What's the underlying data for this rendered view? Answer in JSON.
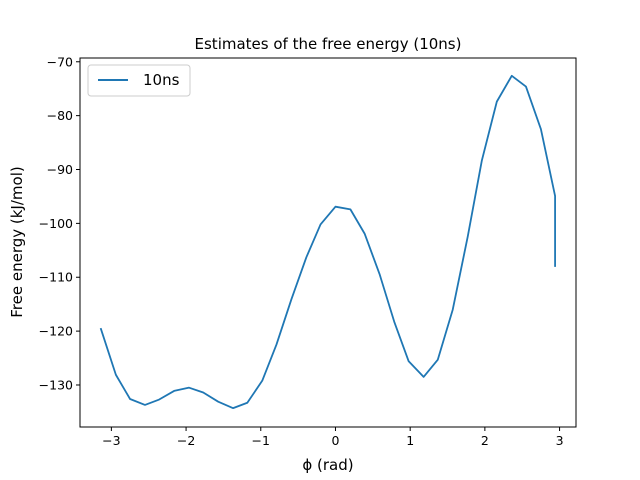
{
  "chart_data": {
    "type": "line",
    "title": "Estimates of the free energy (10ns)",
    "xlabel": "ϕ (rad)",
    "ylabel": "Free energy (kJ/mol)",
    "xlim": [
      -3.42,
      3.22
    ],
    "ylim": [
      -137.8,
      -69.3
    ],
    "xticks": [
      -3,
      -2,
      -1,
      0,
      1,
      2,
      3
    ],
    "xtick_labels": [
      "−3",
      "−2",
      "−1",
      "0",
      "1",
      "2",
      "3"
    ],
    "yticks": [
      -130,
      -120,
      -110,
      -100,
      -90,
      -80,
      -70
    ],
    "ytick_labels": [
      "−130",
      "−120",
      "−110",
      "−100",
      "−90",
      "−80",
      "−70"
    ],
    "grid": false,
    "legend_position": "top-left",
    "series": [
      {
        "name": "10ns",
        "color": "#1f77b4",
        "x": [
          -3.14,
          -2.94,
          -2.75,
          -2.55,
          -2.36,
          -2.16,
          -1.96,
          -1.77,
          -1.57,
          -1.37,
          -1.18,
          -0.98,
          -0.79,
          -0.59,
          -0.39,
          -0.2,
          0.0,
          0.2,
          0.39,
          0.59,
          0.79,
          0.98,
          1.18,
          1.37,
          1.57,
          1.77,
          1.96,
          2.16,
          2.36,
          2.55,
          2.75,
          2.94
        ],
        "y": [
          -119.6,
          -128.1,
          -132.6,
          -133.7,
          -132.7,
          -131.1,
          -130.5,
          -131.4,
          -133.1,
          -134.3,
          -133.3,
          -129.2,
          -122.5,
          -114.1,
          -106.3,
          -100.2,
          -96.9,
          -97.4,
          -101.9,
          -109.4,
          -118.4,
          -125.6,
          -128.5,
          -125.3,
          -116.0,
          -102.5,
          -88.3,
          -77.4,
          -72.6,
          -74.6,
          -82.5,
          -94.9
        ]
      }
    ]
  },
  "chart_tail": {
    "x": [
      2.94
    ],
    "y": [
      -107.9
    ]
  }
}
